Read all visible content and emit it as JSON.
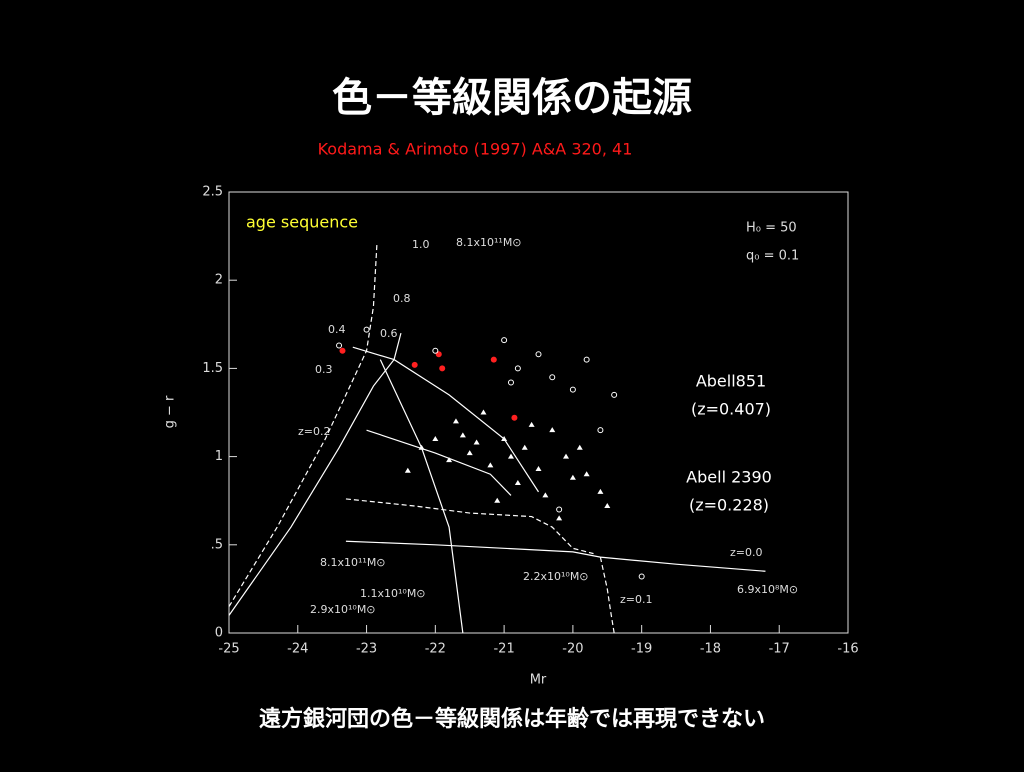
{
  "slide_title": "色－等級関係の起源",
  "reference": "Kodama & Arimoto (1997) A&A 320, 41",
  "caption": "遠方銀河団の色－等級関係は年齢では再現できない",
  "chart_data": {
    "type": "scatter",
    "xlabel": "Mr",
    "ylabel": "g − r",
    "xlim": [
      -25,
      -16
    ],
    "ylim": [
      0,
      2.5
    ],
    "xticks": [
      -25,
      -24,
      -23,
      -22,
      -21,
      -20,
      -19,
      -18,
      -17,
      -16
    ],
    "yticks": [
      0,
      {
        "value": 0.5,
        "label": ".5"
      },
      1,
      1.5,
      2,
      2.5
    ],
    "annotations": {
      "age": "age sequence",
      "h0": "H₀ = 50",
      "q0": "q₀ = 0.1",
      "cl1": "Abell851",
      "cl1z": "(z=0.407)",
      "cl2": "Abell 2390",
      "cl2z": "(z=0.228)",
      "a10": "1.0",
      "a08": "0.8",
      "a06": "0.6",
      "a04": "0.4",
      "a03": "0.3",
      "z02": "z=0.2",
      "z00": "z=0.0",
      "z01": "z=0.1",
      "m1": "8.1x10¹¹M⊙",
      "m2": "8.1x10¹¹M⊙",
      "m3": "1.1x10¹⁰M⊙",
      "m4": "2.9x10¹⁰M⊙",
      "m5": "2.2x10¹⁰M⊙",
      "m6": "6.9x10⁸M⊙"
    },
    "series": [
      {
        "color": "#ff2020",
        "marker": "circle",
        "x": [
          -23.35,
          -22.3,
          -21.95,
          -21.9,
          -21.15,
          -20.85
        ],
        "values": [
          1.6,
          1.52,
          1.58,
          1.5,
          1.55,
          1.22
        ]
      },
      {
        "color": "#ffffff",
        "marker": "ring",
        "x": [
          -23.4,
          -23.0,
          -22.0,
          -21.0,
          -20.8,
          -20.5,
          -20.3,
          -19.8,
          -19.4,
          -20.9,
          -20.0,
          -19.6,
          -20.2,
          -19.0
        ],
        "values": [
          1.63,
          1.72,
          1.6,
          1.66,
          1.5,
          1.58,
          1.45,
          1.55,
          1.35,
          1.42,
          1.38,
          1.15,
          0.7,
          0.32
        ]
      },
      {
        "color": "#ffffff",
        "marker": "triangle",
        "x": [
          -22.2,
          -22.0,
          -21.8,
          -21.6,
          -21.5,
          -21.4,
          -21.2,
          -21.0,
          -20.9,
          -20.7,
          -20.5,
          -20.3,
          -20.1,
          -20.0,
          -19.8,
          -19.6,
          -21.7,
          -21.3,
          -20.8,
          -20.4,
          -19.9,
          -22.4,
          -20.6,
          -19.5,
          -21.1,
          -20.2
        ],
        "values": [
          1.05,
          1.1,
          0.98,
          1.12,
          1.02,
          1.08,
          0.95,
          1.1,
          1.0,
          1.05,
          0.93,
          1.15,
          1.0,
          0.88,
          0.9,
          0.8,
          1.2,
          1.25,
          0.85,
          0.78,
          1.05,
          0.92,
          1.18,
          0.72,
          0.75,
          0.65
        ]
      },
      {
        "color": "#ffffff",
        "marker": "none",
        "line": true,
        "dashed": false,
        "x": [
          -23.3,
          -22.0,
          -21.0,
          -20.0,
          -19.6,
          -18.5,
          -17.2
        ],
        "values": [
          0.52,
          0.5,
          0.48,
          0.46,
          0.43,
          0.39,
          0.35
        ]
      },
      {
        "color": "#ffffff",
        "marker": "none",
        "line": true,
        "dashed": true,
        "x": [
          -23.3,
          -22.3,
          -21.5,
          -20.6,
          -20.3,
          -20.0,
          -19.7
        ],
        "values": [
          0.76,
          0.72,
          0.68,
          0.66,
          0.6,
          0.48,
          0.45
        ]
      },
      {
        "color": "#ffffff",
        "marker": "none",
        "line": true,
        "dashed": true,
        "x": [
          -19.6,
          -19.5,
          -19.45,
          -19.4
        ],
        "values": [
          0.43,
          0.25,
          0.12,
          0.0
        ]
      },
      {
        "color": "#ffffff",
        "marker": "none",
        "line": true,
        "dashed": true,
        "x": [
          -25,
          -24.3,
          -23.6,
          -23.0,
          -22.9,
          -22.85
        ],
        "values": [
          0.15,
          0.6,
          1.1,
          1.6,
          1.85,
          2.2
        ]
      },
      {
        "color": "#ffffff",
        "marker": "none",
        "line": true,
        "dashed": false,
        "x": [
          -25,
          -24.1,
          -23.4,
          -22.9,
          -22.6,
          -22.5
        ],
        "values": [
          0.1,
          0.6,
          1.05,
          1.4,
          1.55,
          1.7
        ]
      },
      {
        "color": "#ffffff",
        "marker": "none",
        "line": true,
        "dashed": false,
        "x": [
          -23.2,
          -22.6,
          -21.8,
          -21.0,
          -20.5
        ],
        "values": [
          1.62,
          1.55,
          1.35,
          1.1,
          0.8
        ]
      },
      {
        "color": "#ffffff",
        "marker": "none",
        "line": true,
        "dashed": false,
        "x": [
          -23.0,
          -22.0,
          -21.2,
          -20.9
        ],
        "values": [
          1.15,
          1.02,
          0.9,
          0.78
        ]
      },
      {
        "color": "#ffffff",
        "marker": "none",
        "line": true,
        "dashed": false,
        "x": [
          -21.6,
          -21.8,
          -22.2,
          -22.8
        ],
        "values": [
          0.0,
          0.6,
          1.05,
          1.55
        ]
      }
    ]
  }
}
